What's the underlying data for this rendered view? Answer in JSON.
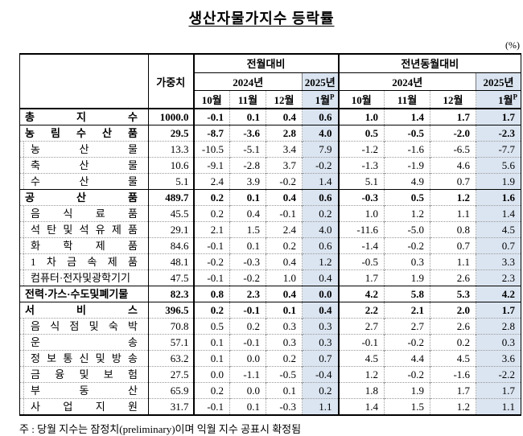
{
  "title": "생산자물가지수 등락률",
  "unit_label": "(%)",
  "note": "주 : 당월 지수는 잠정치(preliminary)이며 익월 지수 공표시 확정됨",
  "colors": {
    "highlight": "#dbe5f1"
  },
  "table": {
    "weight_header": "가중치",
    "group_mom": "전월대비",
    "group_yoy": "전년동월대비",
    "year_2024": "2024년",
    "year_2025": "2025년",
    "months": [
      "10월",
      "11월",
      "12월"
    ],
    "month_2025": "1월",
    "prelim_mark": "P",
    "rows": [
      {
        "label": "총 지 수",
        "section": true,
        "weight": "1000.0",
        "mom": [
          "-0.1",
          "0.1",
          "0.4",
          "0.6"
        ],
        "yoy": [
          "1.0",
          "1.4",
          "1.7",
          "1.7"
        ]
      },
      {
        "label": "농 림 수 산 품",
        "section": true,
        "weight": "29.5",
        "mom": [
          "-8.7",
          "-3.6",
          "2.8",
          "4.0"
        ],
        "yoy": [
          "0.5",
          "-0.5",
          "-2.0",
          "-2.3"
        ]
      },
      {
        "label": "농 산 물",
        "section": false,
        "weight": "13.3",
        "mom": [
          "-10.5",
          "-5.1",
          "3.4",
          "7.9"
        ],
        "yoy": [
          "-1.2",
          "-1.6",
          "-6.5",
          "-7.7"
        ]
      },
      {
        "label": "축 산 물",
        "section": false,
        "weight": "10.6",
        "mom": [
          "-9.1",
          "-2.8",
          "3.7",
          "-0.2"
        ],
        "yoy": [
          "-1.3",
          "-1.9",
          "4.6",
          "5.6"
        ]
      },
      {
        "label": "수 산 물",
        "section": false,
        "weight": "5.1",
        "mom": [
          "2.4",
          "3.9",
          "-0.2",
          "1.4"
        ],
        "yoy": [
          "5.1",
          "4.9",
          "0.7",
          "1.9"
        ]
      },
      {
        "label": "공 산 품",
        "section": true,
        "weight": "489.7",
        "mom": [
          "0.2",
          "0.1",
          "0.4",
          "0.6"
        ],
        "yoy": [
          "-0.3",
          "0.5",
          "1.2",
          "1.6"
        ]
      },
      {
        "label": "음 식 료 품",
        "section": false,
        "weight": "45.5",
        "mom": [
          "0.2",
          "0.4",
          "-0.1",
          "0.2"
        ],
        "yoy": [
          "1.0",
          "1.2",
          "1.1",
          "1.4"
        ]
      },
      {
        "label": "석 탄 및 석 유 제 품",
        "section": false,
        "weight": "29.1",
        "mom": [
          "2.1",
          "1.5",
          "2.4",
          "4.0"
        ],
        "yoy": [
          "-11.6",
          "-5.0",
          "0.8",
          "4.5"
        ]
      },
      {
        "label": "화 학 제 품",
        "section": false,
        "weight": "84.6",
        "mom": [
          "-0.1",
          "0.1",
          "0.2",
          "0.6"
        ],
        "yoy": [
          "-1.4",
          "-0.2",
          "0.7",
          "0.7"
        ]
      },
      {
        "label": "1 차 금 속 제 품",
        "section": false,
        "weight": "48.1",
        "mom": [
          "-0.2",
          "-0.3",
          "0.4",
          "1.2"
        ],
        "yoy": [
          "-0.5",
          "0.3",
          "1.1",
          "3.3"
        ]
      },
      {
        "label": "컴퓨터·전자및광학기기",
        "section": false,
        "weight": "47.5",
        "mom": [
          "-0.1",
          "-0.2",
          "1.0",
          "0.4"
        ],
        "yoy": [
          "1.7",
          "1.9",
          "2.6",
          "2.3"
        ]
      },
      {
        "label": "전력·가스·수도및폐기물",
        "section": true,
        "weight": "82.3",
        "mom": [
          "0.8",
          "2.3",
          "0.4",
          "0.0"
        ],
        "yoy": [
          "4.2",
          "5.8",
          "5.3",
          "4.2"
        ]
      },
      {
        "label": "서 비 스",
        "section": true,
        "weight": "396.5",
        "mom": [
          "0.2",
          "-0.1",
          "0.1",
          "0.4"
        ],
        "yoy": [
          "2.2",
          "2.1",
          "2.0",
          "1.7"
        ]
      },
      {
        "label": "음 식 점 및 숙 박",
        "section": false,
        "weight": "70.8",
        "mom": [
          "0.5",
          "0.2",
          "0.3",
          "0.3"
        ],
        "yoy": [
          "2.7",
          "2.7",
          "2.6",
          "2.8"
        ]
      },
      {
        "label": "운 송",
        "section": false,
        "weight": "57.1",
        "mom": [
          "0.1",
          "-0.1",
          "0.3",
          "0.3"
        ],
        "yoy": [
          "-0.1",
          "-0.2",
          "0.2",
          "0.3"
        ]
      },
      {
        "label": "정 보 통 신 및 방 송",
        "section": false,
        "weight": "63.2",
        "mom": [
          "0.1",
          "0.0",
          "0.2",
          "0.7"
        ],
        "yoy": [
          "4.5",
          "4.4",
          "4.5",
          "3.6"
        ]
      },
      {
        "label": "금 융 및 보 험",
        "section": false,
        "weight": "27.5",
        "mom": [
          "0.0",
          "-1.1",
          "-0.5",
          "-0.4"
        ],
        "yoy": [
          "1.2",
          "-0.2",
          "-1.6",
          "-2.2"
        ]
      },
      {
        "label": "부 동 산",
        "section": false,
        "weight": "65.9",
        "mom": [
          "0.2",
          "0.0",
          "0.1",
          "0.2"
        ],
        "yoy": [
          "1.8",
          "1.9",
          "1.7",
          "1.7"
        ]
      },
      {
        "label": "사 업 지 원",
        "section": false,
        "weight": "31.7",
        "mom": [
          "-0.1",
          "0.1",
          "-0.3",
          "1.1"
        ],
        "yoy": [
          "1.4",
          "1.5",
          "1.2",
          "1.1"
        ]
      }
    ]
  }
}
